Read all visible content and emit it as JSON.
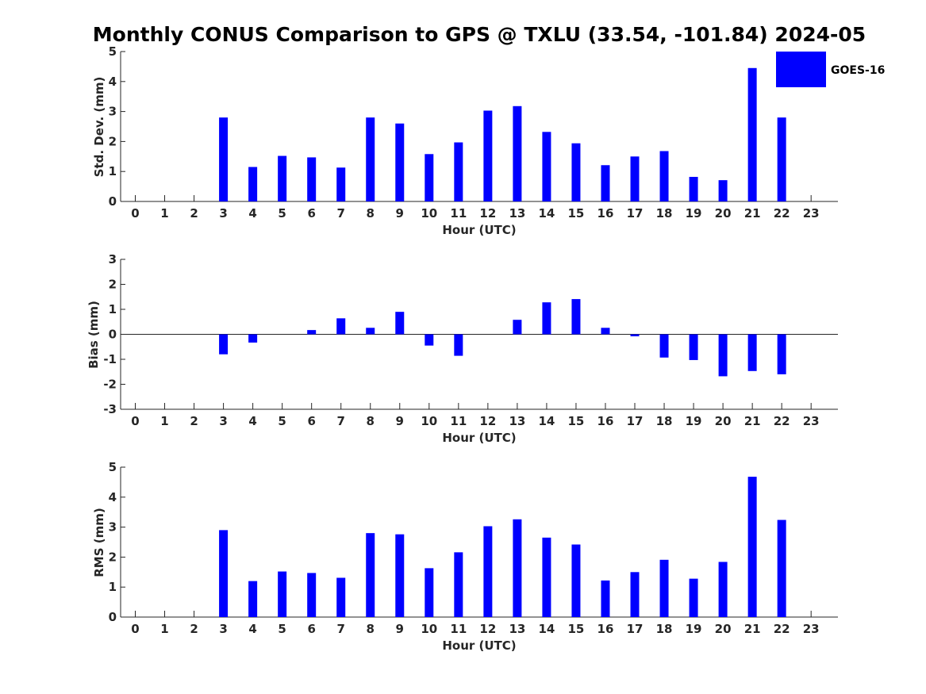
{
  "title": "Monthly CONUS Comparison to GPS @ TXLU (33.54, -101.84) 2024-05",
  "legend": {
    "label": "GOES-16",
    "color": "#0000ff"
  },
  "chart_data": [
    {
      "type": "bar",
      "ylabel": "Std. Dev. (mm)",
      "xlabel": "Hour (UTC)",
      "ylim": [
        0,
        5
      ],
      "yticks": [
        "0",
        "1",
        "2",
        "3",
        "4",
        "5"
      ],
      "categories": [
        "0",
        "1",
        "2",
        "3",
        "4",
        "5",
        "6",
        "7",
        "8",
        "9",
        "10",
        "11",
        "12",
        "13",
        "14",
        "15",
        "16",
        "17",
        "18",
        "19",
        "20",
        "21",
        "22",
        "23"
      ],
      "values": [
        null,
        null,
        null,
        2.8,
        1.15,
        1.52,
        1.47,
        1.13,
        2.8,
        2.6,
        1.58,
        1.97,
        3.03,
        3.18,
        2.32,
        1.94,
        1.21,
        1.5,
        1.68,
        0.82,
        0.71,
        4.45,
        2.8,
        null
      ],
      "color": "#0000ff"
    },
    {
      "type": "bar",
      "ylabel": "Bias (mm)",
      "xlabel": "Hour (UTC)",
      "ylim": [
        -3,
        3
      ],
      "yticks": [
        "-3",
        "-2",
        "-1",
        "0",
        "1",
        "2",
        "3"
      ],
      "categories": [
        "0",
        "1",
        "2",
        "3",
        "4",
        "5",
        "6",
        "7",
        "8",
        "9",
        "10",
        "11",
        "12",
        "13",
        "14",
        "15",
        "16",
        "17",
        "18",
        "19",
        "20",
        "21",
        "22",
        "23"
      ],
      "values": [
        null,
        null,
        null,
        -0.8,
        -0.33,
        null,
        0.17,
        0.64,
        0.26,
        0.9,
        -0.45,
        -0.86,
        null,
        0.58,
        1.28,
        1.41,
        0.26,
        -0.08,
        -0.93,
        -1.03,
        -1.68,
        -1.47,
        -1.6,
        null
      ],
      "zero_line": true,
      "color": "#0000ff"
    },
    {
      "type": "bar",
      "ylabel": "RMS (mm)",
      "xlabel": "Hour (UTC)",
      "ylim": [
        0,
        5
      ],
      "yticks": [
        "0",
        "1",
        "2",
        "3",
        "4",
        "5"
      ],
      "categories": [
        "0",
        "1",
        "2",
        "3",
        "4",
        "5",
        "6",
        "7",
        "8",
        "9",
        "10",
        "11",
        "12",
        "13",
        "14",
        "15",
        "16",
        "17",
        "18",
        "19",
        "20",
        "21",
        "22",
        "23"
      ],
      "values": [
        null,
        null,
        null,
        2.9,
        1.2,
        1.52,
        1.47,
        1.31,
        2.8,
        2.76,
        1.63,
        2.16,
        3.03,
        3.26,
        2.65,
        2.42,
        1.22,
        1.5,
        1.91,
        1.28,
        1.84,
        4.68,
        3.24,
        null
      ],
      "color": "#0000ff"
    }
  ]
}
